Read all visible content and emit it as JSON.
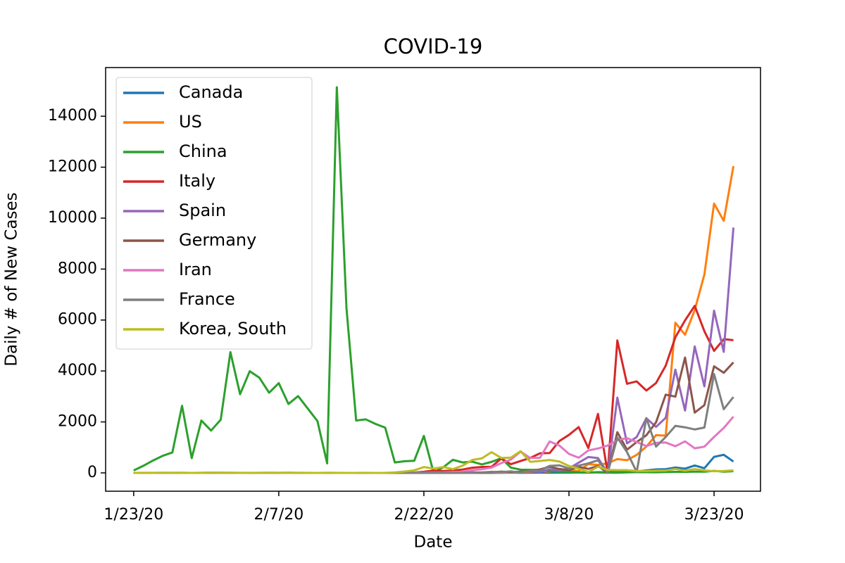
{
  "chart_data": {
    "type": "line",
    "title": "COVID-19",
    "x_label": "Date",
    "y_label": "Daily # of New Cases",
    "categories": [
      "1/23/20",
      null,
      null,
      null,
      null,
      null,
      null,
      null,
      null,
      null,
      null,
      null,
      null,
      null,
      null,
      "2/7/20",
      null,
      null,
      null,
      null,
      null,
      null,
      null,
      null,
      null,
      null,
      null,
      null,
      null,
      null,
      "2/22/20",
      null,
      null,
      null,
      null,
      null,
      null,
      null,
      null,
      null,
      null,
      null,
      null,
      null,
      null,
      "3/8/20",
      null,
      null,
      null,
      null,
      null,
      null,
      null,
      null,
      null,
      null,
      null,
      null,
      null,
      null,
      "3/23/20",
      null,
      null
    ],
    "ylim": [
      -720,
      15910
    ],
    "yticks": [
      0,
      2000,
      4000,
      6000,
      8000,
      10000,
      12000,
      14000
    ],
    "grid": false,
    "legend": "upper left",
    "series": [
      {
        "name": "Canada",
        "color": "#1f77b4",
        "values": [
          0,
          0,
          0,
          1,
          0,
          0,
          0,
          0,
          1,
          0,
          0,
          0,
          0,
          0,
          0,
          2,
          0,
          0,
          0,
          0,
          0,
          0,
          0,
          0,
          0,
          0,
          0,
          0,
          0,
          1,
          0,
          0,
          0,
          1,
          2,
          1,
          1,
          2,
          3,
          7,
          3,
          4,
          12,
          6,
          9,
          7,
          15,
          10,
          30,
          25,
          59,
          55,
          54,
          100,
          135,
          146,
          211,
          166,
          289,
          183,
          629,
          709,
          445
        ]
      },
      {
        "name": "US",
        "color": "#ff7f0e",
        "values": [
          0,
          1,
          0,
          3,
          0,
          0,
          0,
          1,
          1,
          1,
          2,
          0,
          0,
          1,
          0,
          0,
          0,
          0,
          1,
          0,
          0,
          1,
          0,
          0,
          0,
          0,
          0,
          0,
          0,
          2,
          0,
          0,
          0,
          0,
          1,
          1,
          3,
          9,
          6,
          23,
          20,
          31,
          70,
          48,
          115,
          114,
          68,
          345,
          312,
          377,
          540,
          497,
          707,
          1031,
          1479,
          1462,
          5894,
          5423,
          6389,
          7787,
          10571,
          9893,
          12038
        ]
      },
      {
        "name": "China",
        "color": "#2ca02c",
        "values": [
          95,
          277,
          486,
          669,
          802,
          2632,
          578,
          2054,
          1661,
          2089,
          4739,
          3086,
          3991,
          3733,
          3147,
          3523,
          2704,
          3015,
          2525,
          2032,
          373,
          15136,
          6463,
          2055,
          2100,
          1921,
          1777,
          408,
          458,
          473,
          1451,
          21,
          219,
          513,
          410,
          439,
          331,
          433,
          574,
          205,
          127,
          119,
          117,
          65,
          46,
          44,
          19,
          24,
          15,
          8,
          5,
          18,
          28,
          25,
          21,
          33,
          39,
          41,
          46,
          46,
          78,
          47,
          67
        ]
      },
      {
        "name": "Italy",
        "color": "#d62728",
        "values": [
          0,
          0,
          0,
          0,
          0,
          0,
          0,
          0,
          2,
          0,
          0,
          0,
          0,
          0,
          1,
          0,
          0,
          0,
          0,
          0,
          0,
          0,
          0,
          0,
          0,
          0,
          0,
          0,
          0,
          17,
          42,
          93,
          74,
          93,
          131,
          202,
          233,
          240,
          566,
          342,
          466,
          587,
          769,
          778,
          1247,
          1492,
          1797,
          977,
          2313,
          0,
          5198,
          3497,
          3590,
          3233,
          3526,
          4207,
          5322,
          5986,
          6557,
          5560,
          4789,
          5249,
          5210
        ]
      },
      {
        "name": "Spain",
        "color": "#9467bd",
        "values": [
          0,
          0,
          0,
          0,
          0,
          0,
          0,
          0,
          0,
          1,
          0,
          0,
          0,
          0,
          0,
          0,
          0,
          1,
          0,
          0,
          0,
          0,
          0,
          0,
          0,
          0,
          0,
          0,
          0,
          0,
          0,
          0,
          0,
          4,
          7,
          2,
          17,
          13,
          39,
          36,
          45,
          57,
          37,
          141,
          100,
          173,
          400,
          622,
          582,
          0,
          2955,
          1159,
          1407,
          2144,
          1806,
          2162,
          4053,
          2447,
          4964,
          3394,
          6368,
          4749,
          9630
        ]
      },
      {
        "name": "Germany",
        "color": "#8c564b",
        "values": [
          0,
          0,
          0,
          0,
          1,
          3,
          0,
          0,
          1,
          3,
          2,
          2,
          0,
          0,
          0,
          0,
          1,
          0,
          0,
          0,
          1,
          0,
          0,
          0,
          0,
          0,
          0,
          0,
          0,
          0,
          0,
          0,
          0,
          2,
          31,
          20,
          3,
          22,
          49,
          28,
          46,
          66,
          138,
          239,
          156,
          107,
          237,
          157,
          271,
          0,
          1597,
          910,
          1210,
          1477,
          1985,
          3070,
          2993,
          4528,
          2365,
          2660,
          4183,
          3930,
          4337
        ]
      },
      {
        "name": "Iran",
        "color": "#e377c2",
        "values": [
          0,
          0,
          0,
          0,
          0,
          0,
          0,
          0,
          0,
          0,
          0,
          0,
          0,
          0,
          0,
          0,
          0,
          0,
          0,
          0,
          0,
          0,
          0,
          0,
          0,
          0,
          0,
          2,
          3,
          13,
          10,
          15,
          18,
          34,
          44,
          106,
          143,
          205,
          385,
          523,
          835,
          586,
          591,
          1234,
          1076,
          743,
          595,
          881,
          958,
          1075,
          1289,
          1365,
          1209,
          1053,
          1178,
          1192,
          1046,
          1237,
          966,
          1028,
          1411,
          1762,
          2206
        ]
      },
      {
        "name": "France",
        "color": "#7f7f7f",
        "values": [
          0,
          0,
          3,
          0,
          0,
          1,
          0,
          1,
          1,
          0,
          0,
          0,
          0,
          0,
          1,
          0,
          5,
          0,
          0,
          0,
          0,
          0,
          0,
          0,
          0,
          0,
          0,
          0,
          0,
          0,
          0,
          0,
          0,
          0,
          2,
          20,
          19,
          43,
          30,
          61,
          13,
          81,
          92,
          276,
          296,
          177,
          286,
          372,
          497,
          0,
          1388,
          815,
          36,
          2151,
          1032,
          1409,
          1846,
          1788,
          1705,
          1780,
          3880,
          2499,
          2978
        ]
      },
      {
        "name": "Korea, South",
        "color": "#bcbd22",
        "values": [
          0,
          1,
          0,
          1,
          1,
          0,
          0,
          0,
          7,
          1,
          3,
          0,
          1,
          3,
          4,
          1,
          0,
          3,
          0,
          0,
          1,
          0,
          0,
          0,
          1,
          0,
          1,
          20,
          53,
          100,
          229,
          169,
          231,
          144,
          284,
          505,
          571,
          813,
          586,
          599,
          851,
          435,
          467,
          505,
          448,
          272,
          165,
          35,
          242,
          114,
          110,
          107,
          76,
          74,
          84,
          93,
          152,
          87,
          147,
          98,
          64,
          76,
          100
        ]
      }
    ]
  }
}
